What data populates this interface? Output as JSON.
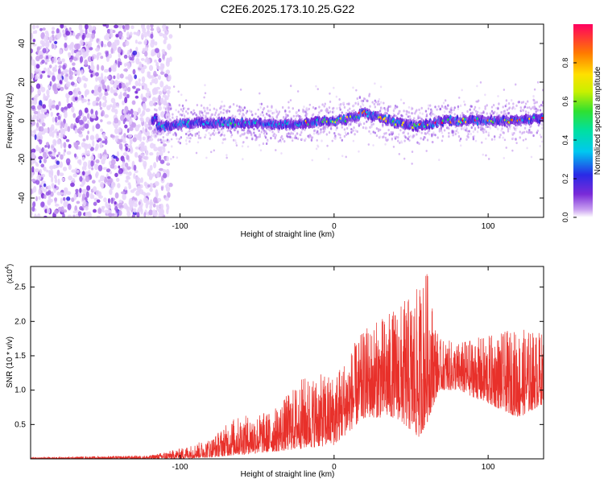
{
  "title": "C2E6.2025.173.10.25.G22",
  "chart_data": [
    {
      "type": "heatmap",
      "xlabel": "Height of straight line (km)",
      "ylabel": "Frequency (Hz)",
      "xlim": [
        -197,
        136
      ],
      "ylim": [
        -50,
        50
      ],
      "xticks": [
        -100,
        0,
        100
      ],
      "yticks": [
        -40,
        -20,
        0,
        20,
        40
      ],
      "colorbar": {
        "label": "Normalized spectral amplitude",
        "range": [
          0,
          1
        ],
        "ticks": [
          0.0,
          0.2,
          0.4,
          0.6,
          0.8
        ]
      },
      "description_points": {
        "noise_region_x": [
          -197,
          -112
        ],
        "signal_trace": [
          {
            "x": -115,
            "y": -3
          },
          {
            "x": -90,
            "y": -1
          },
          {
            "x": -60,
            "y": -1
          },
          {
            "x": -30,
            "y": -2
          },
          {
            "x": 0,
            "y": 0
          },
          {
            "x": 10,
            "y": 1
          },
          {
            "x": 20,
            "y": 4
          },
          {
            "x": 40,
            "y": -1
          },
          {
            "x": 55,
            "y": -3
          },
          {
            "x": 70,
            "y": 0
          },
          {
            "x": 90,
            "y": 0
          },
          {
            "x": 110,
            "y": 0
          },
          {
            "x": 136,
            "y": 1
          }
        ]
      }
    },
    {
      "type": "line",
      "xlabel": "Height of straight line (km)",
      "ylabel": "SNR (10 * v/v)",
      "yscale_note": "(x10^4)",
      "xlim": [
        -197,
        136
      ],
      "ylim": [
        0,
        2.8
      ],
      "xticks": [
        -100,
        0,
        100
      ],
      "yticks": [
        0.5,
        1.0,
        1.5,
        2.0,
        2.5
      ],
      "color": "#e8302a",
      "envelope": [
        {
          "x": -197,
          "lo": 0.0,
          "hi": 0.02
        },
        {
          "x": -120,
          "lo": 0.0,
          "hi": 0.05
        },
        {
          "x": -100,
          "lo": 0.0,
          "hi": 0.15
        },
        {
          "x": -80,
          "lo": 0.02,
          "hi": 0.3
        },
        {
          "x": -65,
          "lo": 0.05,
          "hi": 0.6
        },
        {
          "x": -40,
          "lo": 0.1,
          "hi": 0.7
        },
        {
          "x": -20,
          "lo": 0.15,
          "hi": 1.2
        },
        {
          "x": 0,
          "lo": 0.2,
          "hi": 1.25
        },
        {
          "x": 20,
          "lo": 0.6,
          "hi": 1.9
        },
        {
          "x": 40,
          "lo": 0.6,
          "hi": 2.2
        },
        {
          "x": 55,
          "lo": 0.3,
          "hi": 2.5
        },
        {
          "x": 60,
          "lo": 0.5,
          "hi": 2.8
        },
        {
          "x": 68,
          "lo": 1.0,
          "hi": 1.75
        },
        {
          "x": 80,
          "lo": 1.0,
          "hi": 1.7
        },
        {
          "x": 100,
          "lo": 0.8,
          "hi": 1.8
        },
        {
          "x": 120,
          "lo": 0.6,
          "hi": 1.9
        },
        {
          "x": 136,
          "lo": 0.8,
          "hi": 1.85
        }
      ]
    }
  ]
}
